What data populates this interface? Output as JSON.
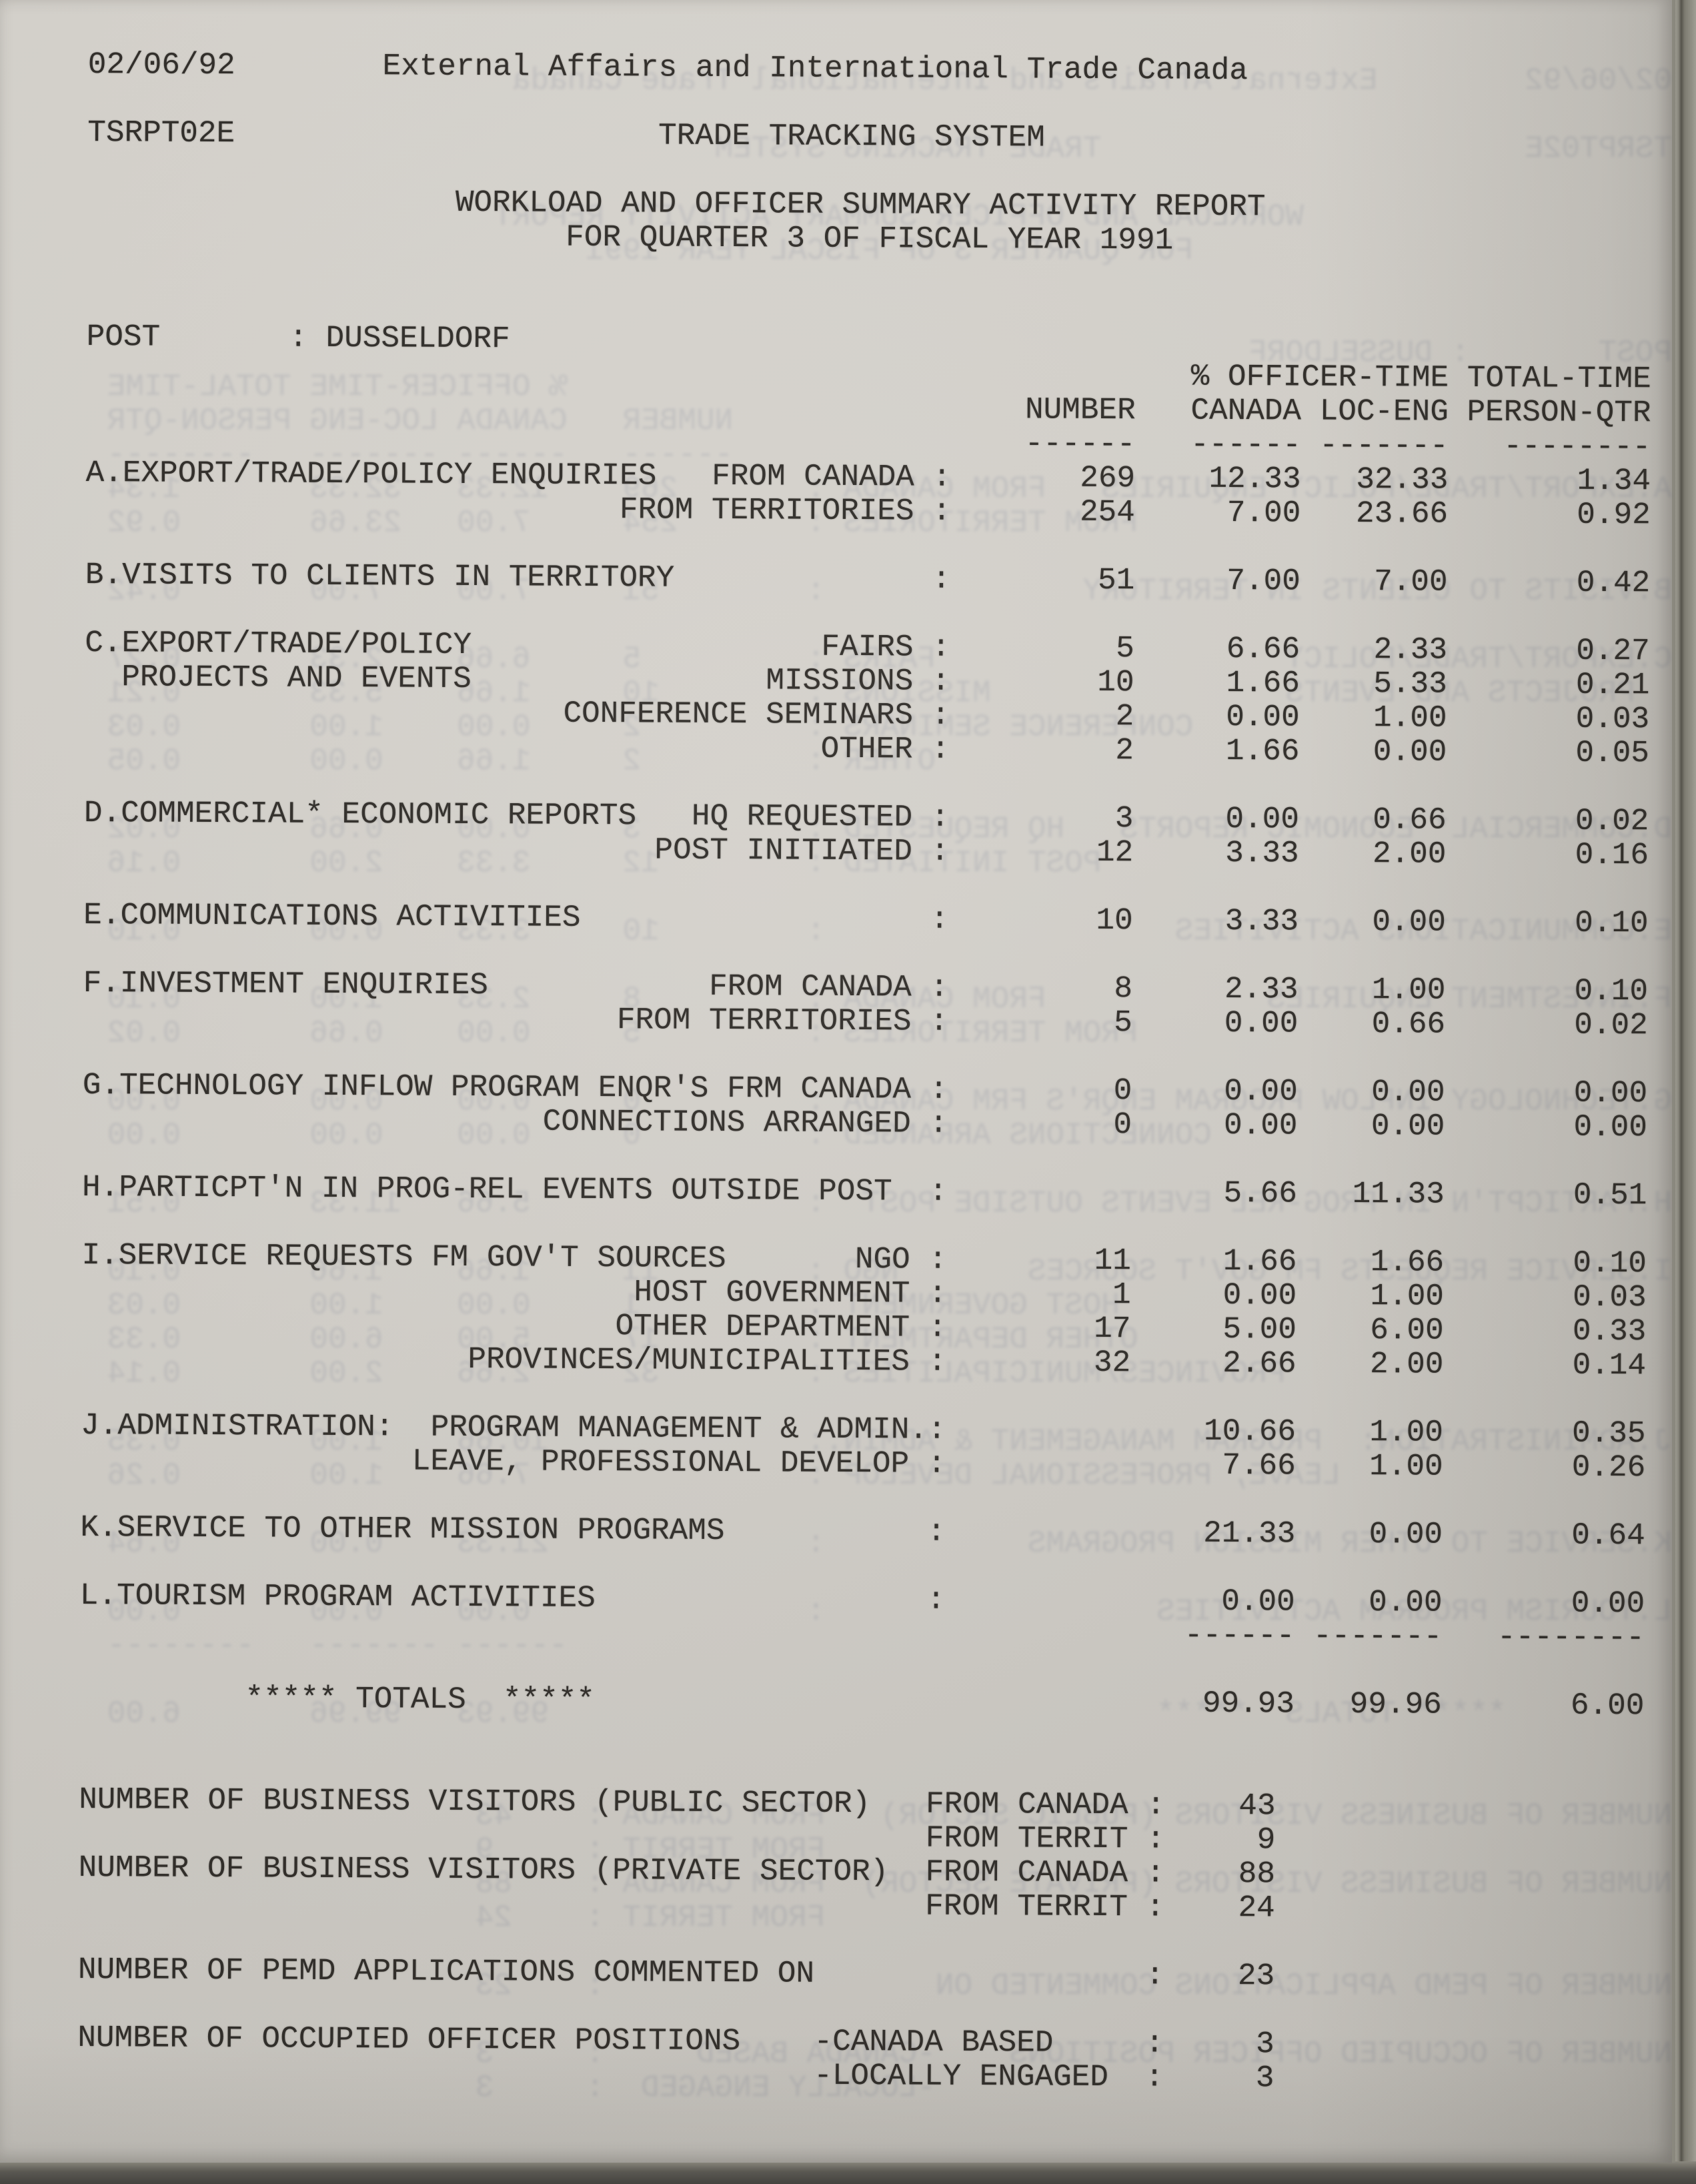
{
  "scan": {
    "paper_color": "#d3d0ca",
    "ink_color": "#2e2b27",
    "edge_dark_line_color": "#55534b",
    "backing_color": "#a09e94",
    "bottom_band_color": "#45433f"
  },
  "header": {
    "date": "02/06/92",
    "organization": "External Affairs and International Trade Canada",
    "report_code": "TSRPT02E",
    "system_name": "TRADE TRACKING SYSTEM",
    "report_title": "WORKLOAD AND OFFICER SUMMARY ACTIVITY REPORT",
    "report_period": "FOR QUARTER 3 OF FISCAL YEAR 1991",
    "post_label": "POST",
    "post_value": "DUSSELDORF"
  },
  "columns": {
    "group_header_officer_time": "% OFFICER-TIME",
    "group_header_total_time": "TOTAL-TIME",
    "number": "NUMBER",
    "canada": "CANADA",
    "loc_eng": "LOC-ENG",
    "person_qtr": "PERSON-QTR"
  },
  "totals": {
    "label": "***** TOTALS  *****",
    "canada": "99.93",
    "loc_eng": "99.96",
    "person_qtr": "6.00"
  },
  "display_lines": [
    {
      "name": "header-date-and-organization",
      "type": "text",
      "indent": 0,
      "text": "02/06/92        External Affairs and International Trade Canada"
    },
    {
      "name": "blank-line",
      "type": "blank"
    },
    {
      "name": "header-report-code-and-system",
      "type": "text",
      "indent": 0,
      "text": "TSRPT02E                       TRADE TRACKING SYSTEM"
    },
    {
      "name": "blank-line",
      "type": "blank"
    },
    {
      "name": "report-title-line",
      "type": "text",
      "indent": 20,
      "text": "WORKLOAD AND OFFICER SUMMARY ACTIVITY REPORT"
    },
    {
      "name": "report-period-line",
      "type": "text",
      "indent": 26,
      "text": "FOR QUARTER 3 OF FISCAL YEAR 1991"
    },
    {
      "name": "blank-line",
      "type": "blank"
    },
    {
      "name": "blank-line",
      "type": "blank"
    },
    {
      "name": "post-line",
      "type": "text",
      "indent": 0,
      "text": "POST       : DUSSELDORF"
    },
    {
      "name": "column-group-header-line",
      "type": "text",
      "indent": 60,
      "text": "% OFFICER-TIME TOTAL-TIME"
    },
    {
      "name": "column-header-line",
      "type": "text",
      "indent": 51,
      "text": "NUMBER   CANADA LOC-ENG PERSON-QTR"
    },
    {
      "name": "column-underline",
      "type": "text",
      "indent": 51,
      "text": "------   ------ -------   --------"
    },
    {
      "name": "row-a-export-enquiries-from-canada",
      "type": "row",
      "label": "A.EXPORT/TRADE/POLICY ENQUIRIES",
      "sublabel": "FROM CANADA",
      "number": "269",
      "canada": "12.33",
      "loc_eng": "32.33",
      "person_qtr": "1.34"
    },
    {
      "name": "row-a-export-enquiries-from-territories",
      "type": "row",
      "label": "",
      "sublabel": "FROM TERRITORIES",
      "number": "254",
      "canada": "7.00",
      "loc_eng": "23.66",
      "person_qtr": "0.92"
    },
    {
      "name": "blank-line",
      "type": "blank"
    },
    {
      "name": "row-b-visits-to-clients",
      "type": "row",
      "label": "B.VISITS TO CLIENTS IN TERRITORY",
      "sublabel": "",
      "number": "51",
      "canada": "7.00",
      "loc_eng": "7.00",
      "person_qtr": "0.42"
    },
    {
      "name": "blank-line",
      "type": "blank"
    },
    {
      "name": "row-c-fairs",
      "type": "row",
      "label": "C.EXPORT/TRADE/POLICY",
      "sublabel": "FAIRS",
      "number": "5",
      "canada": "6.66",
      "loc_eng": "2.33",
      "person_qtr": "0.27"
    },
    {
      "name": "row-c-missions",
      "type": "row",
      "label": "  PROJECTS AND EVENTS",
      "sublabel": "MISSIONS",
      "number": "10",
      "canada": "1.66",
      "loc_eng": "5.33",
      "person_qtr": "0.21"
    },
    {
      "name": "row-c-conference-seminars",
      "type": "row",
      "label": "",
      "sublabel": "CONFERENCE SEMINARS",
      "number": "2",
      "canada": "0.00",
      "loc_eng": "1.00",
      "person_qtr": "0.03"
    },
    {
      "name": "row-c-other",
      "type": "row",
      "label": "",
      "sublabel": "OTHER",
      "number": "2",
      "canada": "1.66",
      "loc_eng": "0.00",
      "person_qtr": "0.05"
    },
    {
      "name": "blank-line",
      "type": "blank"
    },
    {
      "name": "row-d-hq-requested",
      "type": "row",
      "label": "D.COMMERCIAL* ECONOMIC REPORTS",
      "sublabel": "HQ REQUESTED",
      "number": "3",
      "canada": "0.00",
      "loc_eng": "0.66",
      "person_qtr": "0.02"
    },
    {
      "name": "row-d-post-initiated",
      "type": "row",
      "label": "",
      "sublabel": "POST INITIATED",
      "number": "12",
      "canada": "3.33",
      "loc_eng": "2.00",
      "person_qtr": "0.16"
    },
    {
      "name": "blank-line",
      "type": "blank"
    },
    {
      "name": "row-e-communications",
      "type": "row",
      "label": "E.COMMUNICATIONS ACTIVITIES",
      "sublabel": "",
      "number": "10",
      "canada": "3.33",
      "loc_eng": "0.00",
      "person_qtr": "0.10"
    },
    {
      "name": "blank-line",
      "type": "blank"
    },
    {
      "name": "row-f-investment-from-canada",
      "type": "row",
      "label": "F.INVESTMENT ENQUIRIES",
      "sublabel": "FROM CANADA",
      "number": "8",
      "canada": "2.33",
      "loc_eng": "1.00",
      "person_qtr": "0.10"
    },
    {
      "name": "row-f-investment-from-territories",
      "type": "row",
      "label": "",
      "sublabel": "FROM TERRITORIES",
      "number": "5",
      "canada": "0.00",
      "loc_eng": "0.66",
      "person_qtr": "0.02"
    },
    {
      "name": "blank-line",
      "type": "blank"
    },
    {
      "name": "row-g-enquiries-from-canada",
      "type": "row",
      "label": "G.TECHNOLOGY INFLOW PROGRAM ENQR'S FRM CANADA",
      "sublabel": "",
      "number": "0",
      "canada": "0.00",
      "loc_eng": "0.00",
      "person_qtr": "0.00"
    },
    {
      "name": "row-g-connections-arranged",
      "type": "row",
      "label": "",
      "sublabel": "CONNECTIONS ARRANGED",
      "number": "0",
      "canada": "0.00",
      "loc_eng": "0.00",
      "person_qtr": "0.00"
    },
    {
      "name": "blank-line",
      "type": "blank"
    },
    {
      "name": "row-h-participation-outside-post",
      "type": "row",
      "label": "H.PARTICPT'N IN PROG-REL EVENTS OUTSIDE POST",
      "sublabel": "",
      "number": "",
      "canada": "5.66",
      "loc_eng": "11.33",
      "person_qtr": "0.51"
    },
    {
      "name": "blank-line",
      "type": "blank"
    },
    {
      "name": "row-i-ngo",
      "type": "row",
      "label": "I.SERVICE REQUESTS FM GOV'T SOURCES",
      "sublabel": "NGO",
      "number": "11",
      "canada": "1.66",
      "loc_eng": "1.66",
      "person_qtr": "0.10"
    },
    {
      "name": "row-i-host-government",
      "type": "row",
      "label": "",
      "sublabel": "HOST GOVERNMENT",
      "number": "1",
      "canada": "0.00",
      "loc_eng": "1.00",
      "person_qtr": "0.03"
    },
    {
      "name": "row-i-other-department",
      "type": "row",
      "label": "",
      "sublabel": "OTHER DEPARTMENT",
      "number": "17",
      "canada": "5.00",
      "loc_eng": "6.00",
      "person_qtr": "0.33"
    },
    {
      "name": "row-i-provinces-municipalities",
      "type": "row",
      "label": "",
      "sublabel": "PROVINCES/MUNICIPALITIES",
      "number": "32",
      "canada": "2.66",
      "loc_eng": "2.00",
      "person_qtr": "0.14"
    },
    {
      "name": "blank-line",
      "type": "blank"
    },
    {
      "name": "row-j-program-management",
      "type": "row",
      "label": "J.ADMINISTRATION:  PROGRAM MANAGEMENT & ADMIN.",
      "sublabel": "",
      "number": "",
      "canada": "10.66",
      "loc_eng": "1.00",
      "person_qtr": "0.35"
    },
    {
      "name": "row-j-leave-professional-develop",
      "type": "row",
      "label": "",
      "sublabel": "LEAVE, PROFESSIONAL DEVELOP",
      "number": "",
      "canada": "7.66",
      "loc_eng": "1.00",
      "person_qtr": "0.26"
    },
    {
      "name": "blank-line",
      "type": "blank"
    },
    {
      "name": "row-k-service-other-missions",
      "type": "row",
      "label": "K.SERVICE TO OTHER MISSION PROGRAMS",
      "sublabel": "",
      "number": "",
      "canada": "21.33",
      "loc_eng": "0.00",
      "person_qtr": "0.64"
    },
    {
      "name": "blank-line",
      "type": "blank"
    },
    {
      "name": "row-l-tourism",
      "type": "row",
      "label": "L.TOURISM PROGRAM ACTIVITIES",
      "sublabel": "",
      "number": "",
      "canada": "0.00",
      "loc_eng": "0.00",
      "person_qtr": "0.00"
    },
    {
      "name": "totals-underline",
      "type": "text",
      "indent": 60,
      "text": "------ -------   --------"
    },
    {
      "name": "blank-line",
      "type": "blank"
    },
    {
      "name": "totals-row",
      "type": "row",
      "colon": false,
      "label": "         ***** TOTALS  *****",
      "sublabel": "",
      "number": "",
      "canada": "99.93",
      "loc_eng": "99.96",
      "person_qtr": "6.00"
    },
    {
      "name": "blank-line",
      "type": "blank"
    },
    {
      "name": "blank-line",
      "type": "blank"
    },
    {
      "name": "stat-business-visitors-public-from-canada",
      "type": "fstat",
      "label": "NUMBER OF BUSINESS VISITORS (PUBLIC SECTOR)",
      "sublabel": "FROM CANADA",
      "subcol": 46,
      "value": "43"
    },
    {
      "name": "stat-business-visitors-public-from-territories",
      "type": "fstat",
      "label": "",
      "sublabel": "FROM TERRIT",
      "subcol": 46,
      "value": "9"
    },
    {
      "name": "stat-business-visitors-private-from-canada",
      "type": "fstat",
      "label": "NUMBER OF BUSINESS VISITORS (PRIVATE SECTOR)",
      "sublabel": "FROM CANADA",
      "subcol": 46,
      "value": "88"
    },
    {
      "name": "stat-business-visitors-private-from-territories",
      "type": "fstat",
      "label": "",
      "sublabel": "FROM TERRIT",
      "subcol": 46,
      "value": "24"
    },
    {
      "name": "blank-line",
      "type": "blank"
    },
    {
      "name": "stat-pemd-applications",
      "type": "fstat",
      "label": "NUMBER OF PEMD APPLICATIONS COMMENTED ON",
      "sublabel": "",
      "subcol": 0,
      "value": "23"
    },
    {
      "name": "blank-line",
      "type": "blank"
    },
    {
      "name": "stat-officer-positions-canada-based",
      "type": "fstat",
      "label": "NUMBER OF OCCUPIED OFFICER POSITIONS",
      "sublabel": "-CANADA BASED",
      "subcol": 40,
      "value": "3"
    },
    {
      "name": "stat-officer-positions-locally-engaged",
      "type": "fstat",
      "label": "",
      "sublabel": "-LOCALLY ENGAGED",
      "subcol": 40,
      "value": "3"
    }
  ]
}
